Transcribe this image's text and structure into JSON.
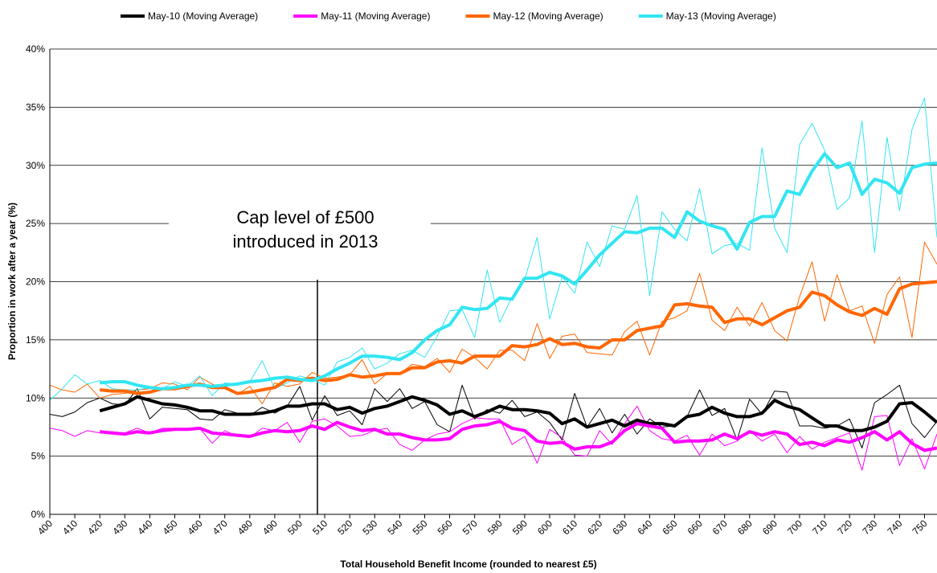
{
  "chart_data": {
    "type": "line",
    "x": [
      400,
      405,
      410,
      415,
      420,
      425,
      430,
      435,
      440,
      445,
      450,
      455,
      460,
      465,
      470,
      475,
      480,
      485,
      490,
      495,
      500,
      505,
      510,
      515,
      520,
      525,
      530,
      535,
      540,
      545,
      550,
      555,
      560,
      565,
      570,
      575,
      580,
      585,
      590,
      595,
      600,
      605,
      610,
      615,
      620,
      625,
      630,
      635,
      640,
      645,
      650,
      655,
      660,
      665,
      670,
      675,
      680,
      685,
      690,
      695,
      700,
      705,
      710,
      715,
      720,
      725,
      730,
      735,
      740,
      745,
      750,
      755
    ],
    "series": [
      {
        "color": "#000000",
        "width": 1,
        "values": [
          8.6,
          8.4,
          8.8,
          9.6,
          10.0,
          9.5,
          9.4,
          10.8,
          8.2,
          9.2,
          9.1,
          9.0,
          8.2,
          8.1,
          9.0,
          8.7,
          8.5,
          9.2,
          8.7,
          9.3,
          11.0,
          8.1,
          10.2,
          8.5,
          8.9,
          7.7,
          10.8,
          9.7,
          10.8,
          9.1,
          9.7,
          7.7,
          7.1,
          11.1,
          8.2,
          9.0,
          8.7,
          9.8,
          8.4,
          8.8,
          7.9,
          6.4,
          10.4,
          7.5,
          9.1,
          7.0,
          8.6,
          6.9,
          8.2,
          7.5,
          7.6,
          8.4,
          10.7,
          8.5,
          9.1,
          6.4,
          9.9,
          8.6,
          10.6,
          10.5,
          7.6,
          7.6,
          7.4,
          7.6,
          8.2,
          5.7,
          9.6,
          10.3,
          11.1,
          7.8,
          6.6,
          8.0
        ]
      },
      {
        "color": "#ff00ff",
        "width": 1,
        "values": [
          7.4,
          7.2,
          6.7,
          7.2,
          7.0,
          7.1,
          7.0,
          7.4,
          7.0,
          7.4,
          7.4,
          7.3,
          7.4,
          6.1,
          7.2,
          6.7,
          6.6,
          7.4,
          7.2,
          7.9,
          6.2,
          8.0,
          8.2,
          7.6,
          6.7,
          6.8,
          7.2,
          7.4,
          6.0,
          5.5,
          6.4,
          6.9,
          7.1,
          7.8,
          8.3,
          8.2,
          8.2,
          6.0,
          6.7,
          4.4,
          7.3,
          6.6,
          5.1,
          5.0,
          7.2,
          6.0,
          7.8,
          9.3,
          7.2,
          6.5,
          6.3,
          6.8,
          5.1,
          6.9,
          5.9,
          6.3,
          7.2,
          6.3,
          6.9,
          5.3,
          6.7,
          5.6,
          6.2,
          6.6,
          7.0,
          3.8,
          8.4,
          8.5,
          4.2,
          6.5,
          3.9,
          6.9
        ]
      },
      {
        "color": "#ff6600",
        "width": 1,
        "values": [
          11.1,
          10.7,
          10.5,
          11.2,
          10.0,
          10.3,
          10.4,
          10.7,
          10.8,
          11.3,
          11.2,
          10.7,
          11.8,
          11.2,
          10.8,
          10.3,
          11.0,
          9.5,
          11.3,
          11.0,
          11.2,
          12.2,
          11.7,
          11.8,
          12.0,
          13.3,
          11.2,
          12.1,
          12.1,
          12.9,
          12.7,
          13.4,
          12.2,
          14.2,
          13.5,
          12.5,
          14.1,
          14.1,
          13.2,
          16.4,
          13.4,
          15.3,
          15.5,
          13.9,
          13.8,
          13.7,
          15.7,
          16.6,
          13.7,
          16.6,
          16.9,
          17.5,
          20.7,
          16.7,
          15.8,
          17.8,
          16.2,
          18.2,
          15.8,
          14.9,
          18.7,
          21.7,
          16.6,
          20.6,
          17.5,
          17.9,
          14.7,
          18.9,
          20.4,
          15.2,
          23.4,
          21.5
        ]
      },
      {
        "color": "#33e5f2",
        "width": 1,
        "values": [
          9.8,
          10.8,
          12.0,
          11.2,
          11.5,
          10.8,
          10.7,
          10.7,
          10.9,
          10.8,
          11.4,
          11.0,
          11.9,
          10.2,
          11.3,
          11.2,
          11.4,
          13.2,
          10.8,
          11.3,
          11.9,
          11.6,
          11.1,
          13.1,
          13.5,
          14.3,
          12.5,
          13.0,
          13.8,
          14.1,
          13.5,
          15.3,
          17.5,
          17.6,
          15.2,
          21.0,
          16.5,
          18.7,
          20.2,
          23.8,
          16.8,
          20.4,
          19.0,
          23.4,
          21.3,
          24.8,
          24.5,
          27.4,
          18.8,
          26.0,
          24.5,
          23.5,
          28.0,
          22.4,
          23.1,
          23.3,
          22.7,
          31.5,
          24.6,
          22.5,
          31.8,
          33.6,
          31.3,
          26.2,
          27.2,
          33.8,
          22.5,
          32.4,
          26.1,
          33.1,
          35.8,
          23.8
        ]
      },
      {
        "name": "May-10 (Moving Average)",
        "color": "#000000",
        "width": 4,
        "values": [
          null,
          null,
          null,
          null,
          8.9,
          9.2,
          9.5,
          10.1,
          9.8,
          9.5,
          9.4,
          9.2,
          8.9,
          8.9,
          8.6,
          8.6,
          8.6,
          8.7,
          8.9,
          9.3,
          9.3,
          9.5,
          9.5,
          9.0,
          9.2,
          8.7,
          9.1,
          9.3,
          9.7,
          10.1,
          9.8,
          9.4,
          8.6,
          8.9,
          8.4,
          8.8,
          9.3,
          9.0,
          9.0,
          8.9,
          8.7,
          7.8,
          8.2,
          7.5,
          7.8,
          8.1,
          7.6,
          8.1,
          7.8,
          7.8,
          7.6,
          8.4,
          8.6,
          9.2,
          8.7,
          8.4,
          8.4,
          8.7,
          9.8,
          9.3,
          9.0,
          8.3,
          7.6,
          7.6,
          7.2,
          7.2,
          7.5,
          8.0,
          9.5,
          9.6,
          8.8,
          7.9
        ]
      },
      {
        "name": "May-11 (Moving Average)",
        "color": "#ff00ff",
        "width": 4,
        "values": [
          null,
          null,
          null,
          null,
          7.1,
          7.0,
          6.9,
          7.1,
          7.0,
          7.2,
          7.3,
          7.3,
          7.4,
          7.0,
          6.9,
          6.8,
          6.7,
          7.0,
          7.2,
          7.1,
          7.2,
          7.6,
          7.3,
          7.9,
          7.5,
          7.2,
          7.3,
          6.9,
          6.9,
          6.6,
          6.4,
          6.4,
          6.5,
          7.3,
          7.6,
          7.7,
          8.0,
          7.4,
          7.2,
          6.3,
          6.1,
          6.2,
          5.6,
          5.8,
          5.8,
          6.2,
          7.2,
          7.8,
          7.6,
          7.4,
          6.2,
          6.3,
          6.3,
          6.4,
          6.9,
          6.5,
          7.1,
          6.8,
          7.1,
          6.9,
          6.0,
          6.2,
          5.9,
          6.4,
          6.2,
          6.6,
          7.1,
          6.4,
          7.1,
          6.1,
          5.5,
          5.7
        ]
      },
      {
        "name": "May-12 (Moving Average)",
        "color": "#ff6600",
        "width": 4,
        "values": [
          null,
          null,
          null,
          null,
          10.7,
          10.6,
          10.6,
          10.4,
          10.5,
          10.8,
          10.8,
          11.0,
          11.2,
          10.9,
          10.9,
          10.4,
          10.5,
          10.7,
          10.9,
          11.6,
          11.5,
          11.7,
          11.5,
          11.6,
          12.0,
          11.8,
          11.9,
          12.1,
          12.1,
          12.6,
          12.6,
          13.1,
          13.2,
          13.0,
          13.6,
          13.6,
          13.6,
          14.5,
          14.4,
          14.6,
          15.1,
          14.6,
          14.7,
          14.4,
          14.3,
          15.0,
          15.0,
          15.8,
          16.0,
          16.2,
          18.0,
          18.1,
          17.9,
          17.8,
          16.5,
          16.8,
          16.8,
          16.3,
          16.9,
          17.5,
          17.8,
          19.1,
          18.8,
          18.0,
          17.4,
          17.1,
          17.7,
          17.2,
          19.4,
          19.8,
          19.9,
          20.0
        ]
      },
      {
        "name": "May-13 (Moving Average)",
        "color": "#33e5f2",
        "width": 4,
        "values": [
          null,
          null,
          null,
          null,
          11.3,
          11.4,
          11.4,
          11.1,
          10.9,
          10.8,
          10.9,
          11.1,
          11.1,
          11.0,
          11.1,
          11.2,
          11.4,
          11.5,
          11.7,
          11.8,
          11.6,
          11.5,
          11.9,
          12.5,
          13.0,
          13.6,
          13.6,
          13.5,
          13.3,
          13.9,
          15.0,
          15.8,
          16.3,
          17.8,
          17.6,
          17.7,
          18.6,
          18.5,
          20.3,
          20.3,
          20.8,
          20.5,
          19.8,
          21.0,
          22.3,
          23.3,
          24.3,
          24.2,
          24.6,
          24.6,
          23.8,
          26.0,
          25.2,
          24.8,
          24.5,
          22.8,
          25.1,
          25.6,
          25.6,
          27.8,
          27.5,
          29.5,
          31.0,
          29.8,
          30.2,
          27.5,
          28.8,
          28.5,
          27.6,
          29.8,
          30.1,
          30.2
        ]
      }
    ],
    "xlim": [
      400,
      755
    ],
    "xticks": [
      400,
      410,
      420,
      430,
      440,
      450,
      460,
      470,
      480,
      490,
      500,
      510,
      520,
      530,
      540,
      550,
      560,
      570,
      580,
      590,
      600,
      610,
      620,
      630,
      640,
      650,
      660,
      670,
      680,
      690,
      700,
      710,
      720,
      730,
      740,
      750
    ],
    "ylim": [
      0,
      40
    ],
    "yticks": [
      {
        "value": 0,
        "label": "0%"
      },
      {
        "value": 5,
        "label": "5%"
      },
      {
        "value": 10,
        "label": "10%"
      },
      {
        "value": 15,
        "label": "15%"
      },
      {
        "value": 20,
        "label": "20%"
      },
      {
        "value": 25,
        "label": "25%"
      },
      {
        "value": 30,
        "label": "30%"
      },
      {
        "value": 35,
        "label": "35%"
      },
      {
        "value": 40,
        "label": "40%"
      }
    ],
    "grid": true,
    "legend": "top",
    "x_label": "Total Household Benefit Income (rounded to nearest £5)",
    "y_label": "Proportion in work after a year (%)",
    "annotation": [
      "Cap level of £500",
      "introduced in 2013"
    ]
  }
}
